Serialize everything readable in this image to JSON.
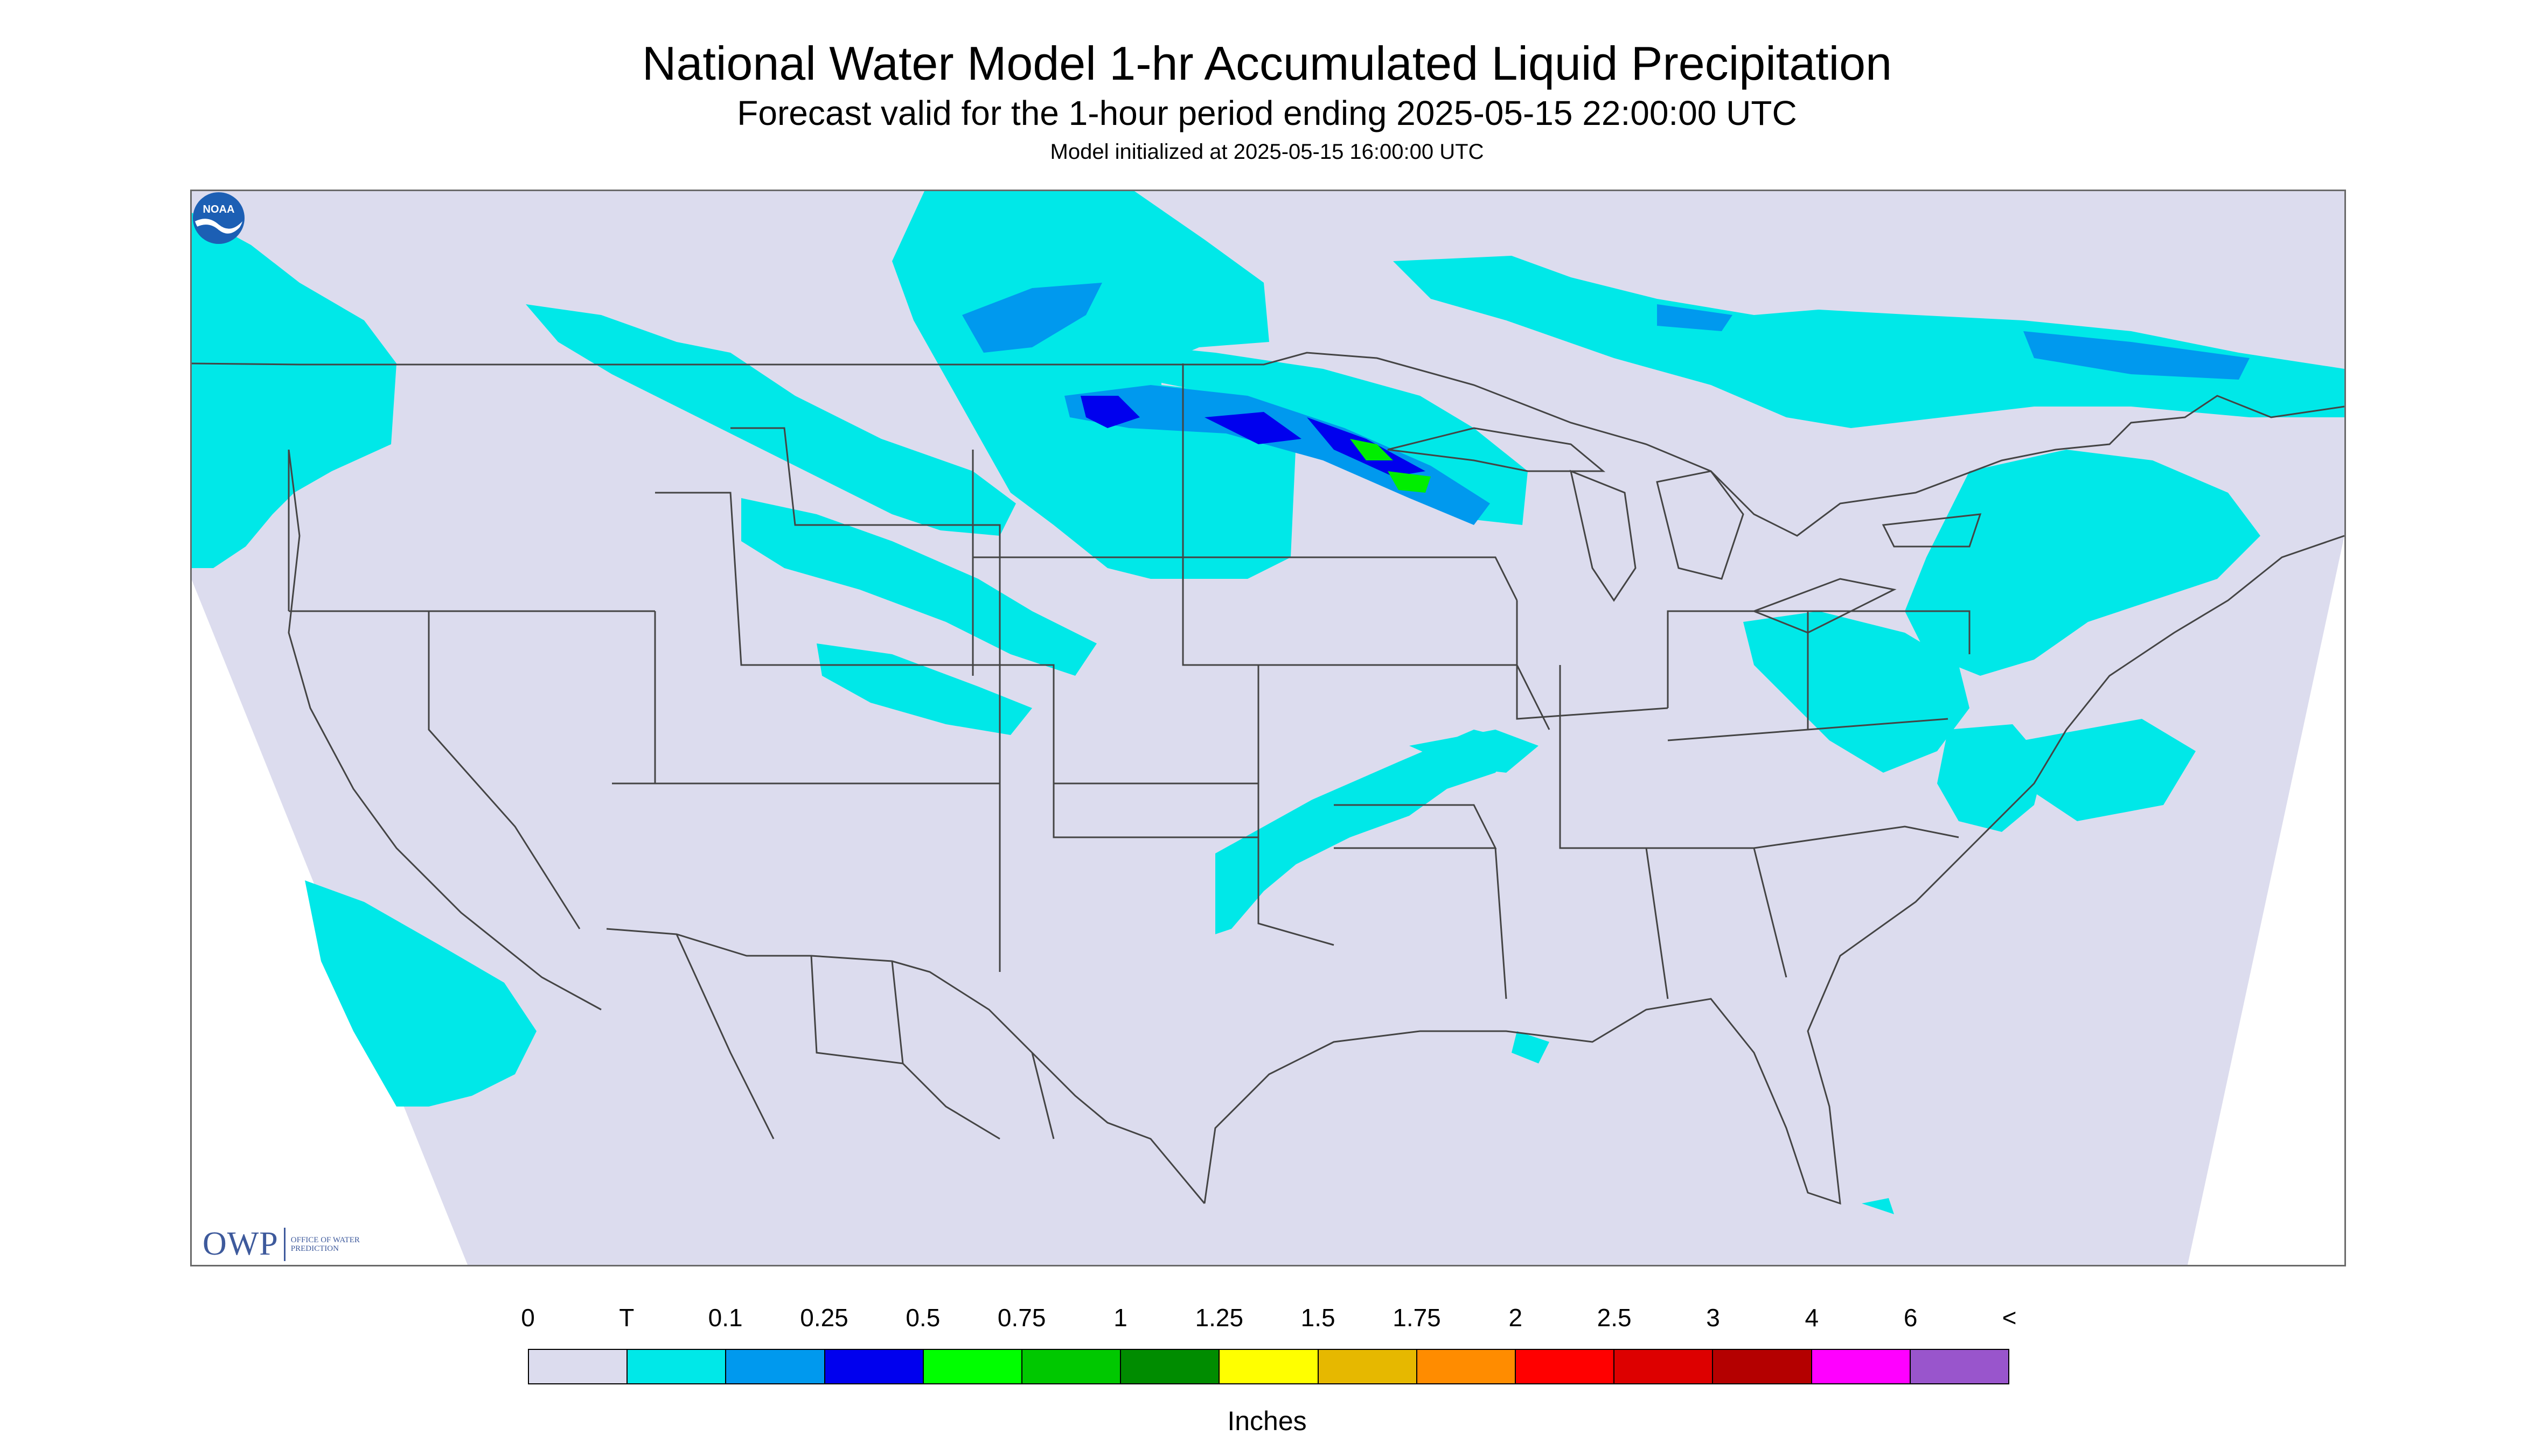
{
  "header": {
    "title": "National Water Model 1-hr Accumulated Liquid Precipitation",
    "subtitle": "Forecast valid for the 1-hour period ending 2025-05-15 22:00:00 UTC",
    "init_line": "Model initialized at 2025-05-15 16:00:00 UTC"
  },
  "map": {
    "background_color": "#dcdcee",
    "outside_domain_color": "#ffffff",
    "border_color": "#444444",
    "precip_colors": {
      "trace": "#00e8e8",
      "light": "#0099ee",
      "moderate": "#0000ee",
      "heavy": "#00ee00"
    },
    "logos": {
      "owp_mark": "OWP",
      "owp_text": "OFFICE OF WATER PREDICTION",
      "noaa_icon": "noaa-logo-icon",
      "noaa_text": "NOAA"
    }
  },
  "legend": {
    "labels": [
      "0",
      "T",
      "0.1",
      "0.25",
      "0.5",
      "0.75",
      "1",
      "1.25",
      "1.5",
      "1.75",
      "2",
      "2.5",
      "3",
      "4",
      "6",
      "<"
    ],
    "colors": [
      "#dcdcee",
      "#00e8e8",
      "#0099ee",
      "#0000ee",
      "#00ff00",
      "#00c800",
      "#008c00",
      "#ffff00",
      "#e6b800",
      "#ff8c00",
      "#ff0000",
      "#dd0000",
      "#b40000",
      "#ff00ff",
      "#9955cc"
    ],
    "units": "Inches"
  }
}
